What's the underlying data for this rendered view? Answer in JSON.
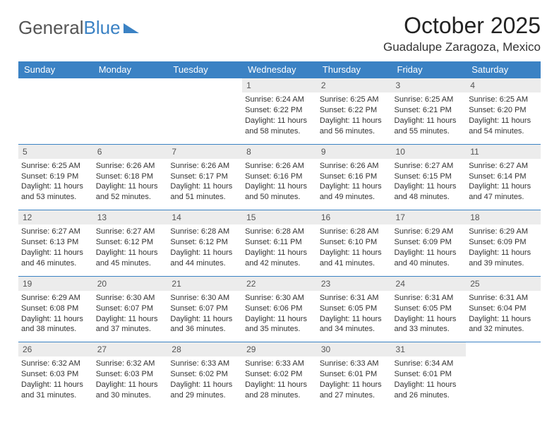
{
  "logo": {
    "text1": "General",
    "text2": "Blue"
  },
  "title": {
    "month": "October 2025",
    "location": "Guadalupe Zaragoza, Mexico"
  },
  "colors": {
    "header_bg": "#3b82c4",
    "header_text": "#ffffff",
    "daynum_bg": "#ececec",
    "week_border": "#3b82c4",
    "text": "#333333"
  },
  "weekdays": [
    "Sunday",
    "Monday",
    "Tuesday",
    "Wednesday",
    "Thursday",
    "Friday",
    "Saturday"
  ],
  "weeks": [
    [
      null,
      null,
      null,
      {
        "d": "1",
        "sr": "6:24 AM",
        "ss": "6:22 PM",
        "dl": "11 hours and 58 minutes."
      },
      {
        "d": "2",
        "sr": "6:25 AM",
        "ss": "6:22 PM",
        "dl": "11 hours and 56 minutes."
      },
      {
        "d": "3",
        "sr": "6:25 AM",
        "ss": "6:21 PM",
        "dl": "11 hours and 55 minutes."
      },
      {
        "d": "4",
        "sr": "6:25 AM",
        "ss": "6:20 PM",
        "dl": "11 hours and 54 minutes."
      }
    ],
    [
      {
        "d": "5",
        "sr": "6:25 AM",
        "ss": "6:19 PM",
        "dl": "11 hours and 53 minutes."
      },
      {
        "d": "6",
        "sr": "6:26 AM",
        "ss": "6:18 PM",
        "dl": "11 hours and 52 minutes."
      },
      {
        "d": "7",
        "sr": "6:26 AM",
        "ss": "6:17 PM",
        "dl": "11 hours and 51 minutes."
      },
      {
        "d": "8",
        "sr": "6:26 AM",
        "ss": "6:16 PM",
        "dl": "11 hours and 50 minutes."
      },
      {
        "d": "9",
        "sr": "6:26 AM",
        "ss": "6:16 PM",
        "dl": "11 hours and 49 minutes."
      },
      {
        "d": "10",
        "sr": "6:27 AM",
        "ss": "6:15 PM",
        "dl": "11 hours and 48 minutes."
      },
      {
        "d": "11",
        "sr": "6:27 AM",
        "ss": "6:14 PM",
        "dl": "11 hours and 47 minutes."
      }
    ],
    [
      {
        "d": "12",
        "sr": "6:27 AM",
        "ss": "6:13 PM",
        "dl": "11 hours and 46 minutes."
      },
      {
        "d": "13",
        "sr": "6:27 AM",
        "ss": "6:12 PM",
        "dl": "11 hours and 45 minutes."
      },
      {
        "d": "14",
        "sr": "6:28 AM",
        "ss": "6:12 PM",
        "dl": "11 hours and 44 minutes."
      },
      {
        "d": "15",
        "sr": "6:28 AM",
        "ss": "6:11 PM",
        "dl": "11 hours and 42 minutes."
      },
      {
        "d": "16",
        "sr": "6:28 AM",
        "ss": "6:10 PM",
        "dl": "11 hours and 41 minutes."
      },
      {
        "d": "17",
        "sr": "6:29 AM",
        "ss": "6:09 PM",
        "dl": "11 hours and 40 minutes."
      },
      {
        "d": "18",
        "sr": "6:29 AM",
        "ss": "6:09 PM",
        "dl": "11 hours and 39 minutes."
      }
    ],
    [
      {
        "d": "19",
        "sr": "6:29 AM",
        "ss": "6:08 PM",
        "dl": "11 hours and 38 minutes."
      },
      {
        "d": "20",
        "sr": "6:30 AM",
        "ss": "6:07 PM",
        "dl": "11 hours and 37 minutes."
      },
      {
        "d": "21",
        "sr": "6:30 AM",
        "ss": "6:07 PM",
        "dl": "11 hours and 36 minutes."
      },
      {
        "d": "22",
        "sr": "6:30 AM",
        "ss": "6:06 PM",
        "dl": "11 hours and 35 minutes."
      },
      {
        "d": "23",
        "sr": "6:31 AM",
        "ss": "6:05 PM",
        "dl": "11 hours and 34 minutes."
      },
      {
        "d": "24",
        "sr": "6:31 AM",
        "ss": "6:05 PM",
        "dl": "11 hours and 33 minutes."
      },
      {
        "d": "25",
        "sr": "6:31 AM",
        "ss": "6:04 PM",
        "dl": "11 hours and 32 minutes."
      }
    ],
    [
      {
        "d": "26",
        "sr": "6:32 AM",
        "ss": "6:03 PM",
        "dl": "11 hours and 31 minutes."
      },
      {
        "d": "27",
        "sr": "6:32 AM",
        "ss": "6:03 PM",
        "dl": "11 hours and 30 minutes."
      },
      {
        "d": "28",
        "sr": "6:33 AM",
        "ss": "6:02 PM",
        "dl": "11 hours and 29 minutes."
      },
      {
        "d": "29",
        "sr": "6:33 AM",
        "ss": "6:02 PM",
        "dl": "11 hours and 28 minutes."
      },
      {
        "d": "30",
        "sr": "6:33 AM",
        "ss": "6:01 PM",
        "dl": "11 hours and 27 minutes."
      },
      {
        "d": "31",
        "sr": "6:34 AM",
        "ss": "6:01 PM",
        "dl": "11 hours and 26 minutes."
      },
      null
    ]
  ],
  "labels": {
    "sunrise": "Sunrise:",
    "sunset": "Sunset:",
    "daylight": "Daylight:"
  }
}
